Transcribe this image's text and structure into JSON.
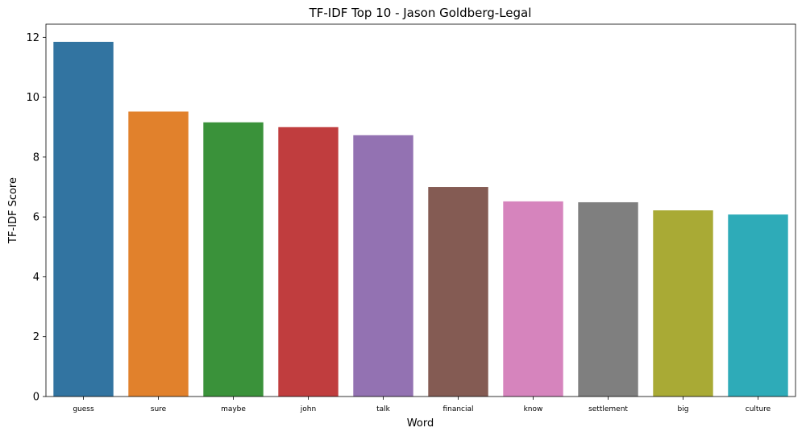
{
  "chart_data": {
    "type": "bar",
    "title": "TF-IDF Top 10 - Jason Goldberg-Legal",
    "xlabel": "Word",
    "ylabel": "TF-IDF Score",
    "categories": [
      "guess",
      "sure",
      "maybe",
      "john",
      "talk",
      "financial",
      "know",
      "settlement",
      "big",
      "culture"
    ],
    "values": [
      11.85,
      9.52,
      9.16,
      9.0,
      8.73,
      7.0,
      6.52,
      6.49,
      6.22,
      6.08
    ],
    "colors": [
      "#3274a1",
      "#e1812c",
      "#3a923a",
      "#c03d3e",
      "#9372b2",
      "#845b53",
      "#d684bd",
      "#7f7f7f",
      "#a9aa35",
      "#2eabb8"
    ],
    "ylim": [
      0,
      12.44
    ],
    "yticks": [
      0,
      2,
      4,
      6,
      8,
      10,
      12
    ],
    "grid": false,
    "legend": "none"
  }
}
